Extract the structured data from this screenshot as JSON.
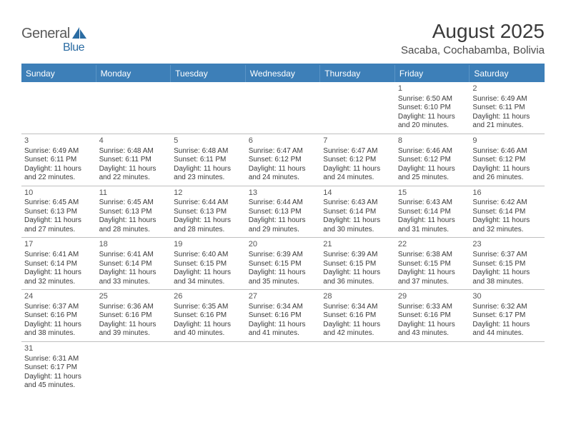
{
  "logo": {
    "text1": "General",
    "text2": "Blue"
  },
  "title": "August 2025",
  "subtitle": "Sacaba, Cochabamba, Bolivia",
  "colors": {
    "header_bg": "#3d7fb8",
    "header_border_top": "#3d7fb8",
    "cell_border": "#bfbfbf",
    "text": "#3a3a3a",
    "logo_gray": "#5a5a5a",
    "logo_blue": "#2b6ca3"
  },
  "weekdays": [
    "Sunday",
    "Monday",
    "Tuesday",
    "Wednesday",
    "Thursday",
    "Friday",
    "Saturday"
  ],
  "leadingEmpty": 5,
  "days": [
    {
      "n": "1",
      "sunrise": "Sunrise: 6:50 AM",
      "sunset": "Sunset: 6:10 PM",
      "d1": "Daylight: 11 hours",
      "d2": "and 20 minutes."
    },
    {
      "n": "2",
      "sunrise": "Sunrise: 6:49 AM",
      "sunset": "Sunset: 6:11 PM",
      "d1": "Daylight: 11 hours",
      "d2": "and 21 minutes."
    },
    {
      "n": "3",
      "sunrise": "Sunrise: 6:49 AM",
      "sunset": "Sunset: 6:11 PM",
      "d1": "Daylight: 11 hours",
      "d2": "and 22 minutes."
    },
    {
      "n": "4",
      "sunrise": "Sunrise: 6:48 AM",
      "sunset": "Sunset: 6:11 PM",
      "d1": "Daylight: 11 hours",
      "d2": "and 22 minutes."
    },
    {
      "n": "5",
      "sunrise": "Sunrise: 6:48 AM",
      "sunset": "Sunset: 6:11 PM",
      "d1": "Daylight: 11 hours",
      "d2": "and 23 minutes."
    },
    {
      "n": "6",
      "sunrise": "Sunrise: 6:47 AM",
      "sunset": "Sunset: 6:12 PM",
      "d1": "Daylight: 11 hours",
      "d2": "and 24 minutes."
    },
    {
      "n": "7",
      "sunrise": "Sunrise: 6:47 AM",
      "sunset": "Sunset: 6:12 PM",
      "d1": "Daylight: 11 hours",
      "d2": "and 24 minutes."
    },
    {
      "n": "8",
      "sunrise": "Sunrise: 6:46 AM",
      "sunset": "Sunset: 6:12 PM",
      "d1": "Daylight: 11 hours",
      "d2": "and 25 minutes."
    },
    {
      "n": "9",
      "sunrise": "Sunrise: 6:46 AM",
      "sunset": "Sunset: 6:12 PM",
      "d1": "Daylight: 11 hours",
      "d2": "and 26 minutes."
    },
    {
      "n": "10",
      "sunrise": "Sunrise: 6:45 AM",
      "sunset": "Sunset: 6:13 PM",
      "d1": "Daylight: 11 hours",
      "d2": "and 27 minutes."
    },
    {
      "n": "11",
      "sunrise": "Sunrise: 6:45 AM",
      "sunset": "Sunset: 6:13 PM",
      "d1": "Daylight: 11 hours",
      "d2": "and 28 minutes."
    },
    {
      "n": "12",
      "sunrise": "Sunrise: 6:44 AM",
      "sunset": "Sunset: 6:13 PM",
      "d1": "Daylight: 11 hours",
      "d2": "and 28 minutes."
    },
    {
      "n": "13",
      "sunrise": "Sunrise: 6:44 AM",
      "sunset": "Sunset: 6:13 PM",
      "d1": "Daylight: 11 hours",
      "d2": "and 29 minutes."
    },
    {
      "n": "14",
      "sunrise": "Sunrise: 6:43 AM",
      "sunset": "Sunset: 6:14 PM",
      "d1": "Daylight: 11 hours",
      "d2": "and 30 minutes."
    },
    {
      "n": "15",
      "sunrise": "Sunrise: 6:43 AM",
      "sunset": "Sunset: 6:14 PM",
      "d1": "Daylight: 11 hours",
      "d2": "and 31 minutes."
    },
    {
      "n": "16",
      "sunrise": "Sunrise: 6:42 AM",
      "sunset": "Sunset: 6:14 PM",
      "d1": "Daylight: 11 hours",
      "d2": "and 32 minutes."
    },
    {
      "n": "17",
      "sunrise": "Sunrise: 6:41 AM",
      "sunset": "Sunset: 6:14 PM",
      "d1": "Daylight: 11 hours",
      "d2": "and 32 minutes."
    },
    {
      "n": "18",
      "sunrise": "Sunrise: 6:41 AM",
      "sunset": "Sunset: 6:14 PM",
      "d1": "Daylight: 11 hours",
      "d2": "and 33 minutes."
    },
    {
      "n": "19",
      "sunrise": "Sunrise: 6:40 AM",
      "sunset": "Sunset: 6:15 PM",
      "d1": "Daylight: 11 hours",
      "d2": "and 34 minutes."
    },
    {
      "n": "20",
      "sunrise": "Sunrise: 6:39 AM",
      "sunset": "Sunset: 6:15 PM",
      "d1": "Daylight: 11 hours",
      "d2": "and 35 minutes."
    },
    {
      "n": "21",
      "sunrise": "Sunrise: 6:39 AM",
      "sunset": "Sunset: 6:15 PM",
      "d1": "Daylight: 11 hours",
      "d2": "and 36 minutes."
    },
    {
      "n": "22",
      "sunrise": "Sunrise: 6:38 AM",
      "sunset": "Sunset: 6:15 PM",
      "d1": "Daylight: 11 hours",
      "d2": "and 37 minutes."
    },
    {
      "n": "23",
      "sunrise": "Sunrise: 6:37 AM",
      "sunset": "Sunset: 6:15 PM",
      "d1": "Daylight: 11 hours",
      "d2": "and 38 minutes."
    },
    {
      "n": "24",
      "sunrise": "Sunrise: 6:37 AM",
      "sunset": "Sunset: 6:16 PM",
      "d1": "Daylight: 11 hours",
      "d2": "and 38 minutes."
    },
    {
      "n": "25",
      "sunrise": "Sunrise: 6:36 AM",
      "sunset": "Sunset: 6:16 PM",
      "d1": "Daylight: 11 hours",
      "d2": "and 39 minutes."
    },
    {
      "n": "26",
      "sunrise": "Sunrise: 6:35 AM",
      "sunset": "Sunset: 6:16 PM",
      "d1": "Daylight: 11 hours",
      "d2": "and 40 minutes."
    },
    {
      "n": "27",
      "sunrise": "Sunrise: 6:34 AM",
      "sunset": "Sunset: 6:16 PM",
      "d1": "Daylight: 11 hours",
      "d2": "and 41 minutes."
    },
    {
      "n": "28",
      "sunrise": "Sunrise: 6:34 AM",
      "sunset": "Sunset: 6:16 PM",
      "d1": "Daylight: 11 hours",
      "d2": "and 42 minutes."
    },
    {
      "n": "29",
      "sunrise": "Sunrise: 6:33 AM",
      "sunset": "Sunset: 6:16 PM",
      "d1": "Daylight: 11 hours",
      "d2": "and 43 minutes."
    },
    {
      "n": "30",
      "sunrise": "Sunrise: 6:32 AM",
      "sunset": "Sunset: 6:17 PM",
      "d1": "Daylight: 11 hours",
      "d2": "and 44 minutes."
    },
    {
      "n": "31",
      "sunrise": "Sunrise: 6:31 AM",
      "sunset": "Sunset: 6:17 PM",
      "d1": "Daylight: 11 hours",
      "d2": "and 45 minutes."
    }
  ]
}
